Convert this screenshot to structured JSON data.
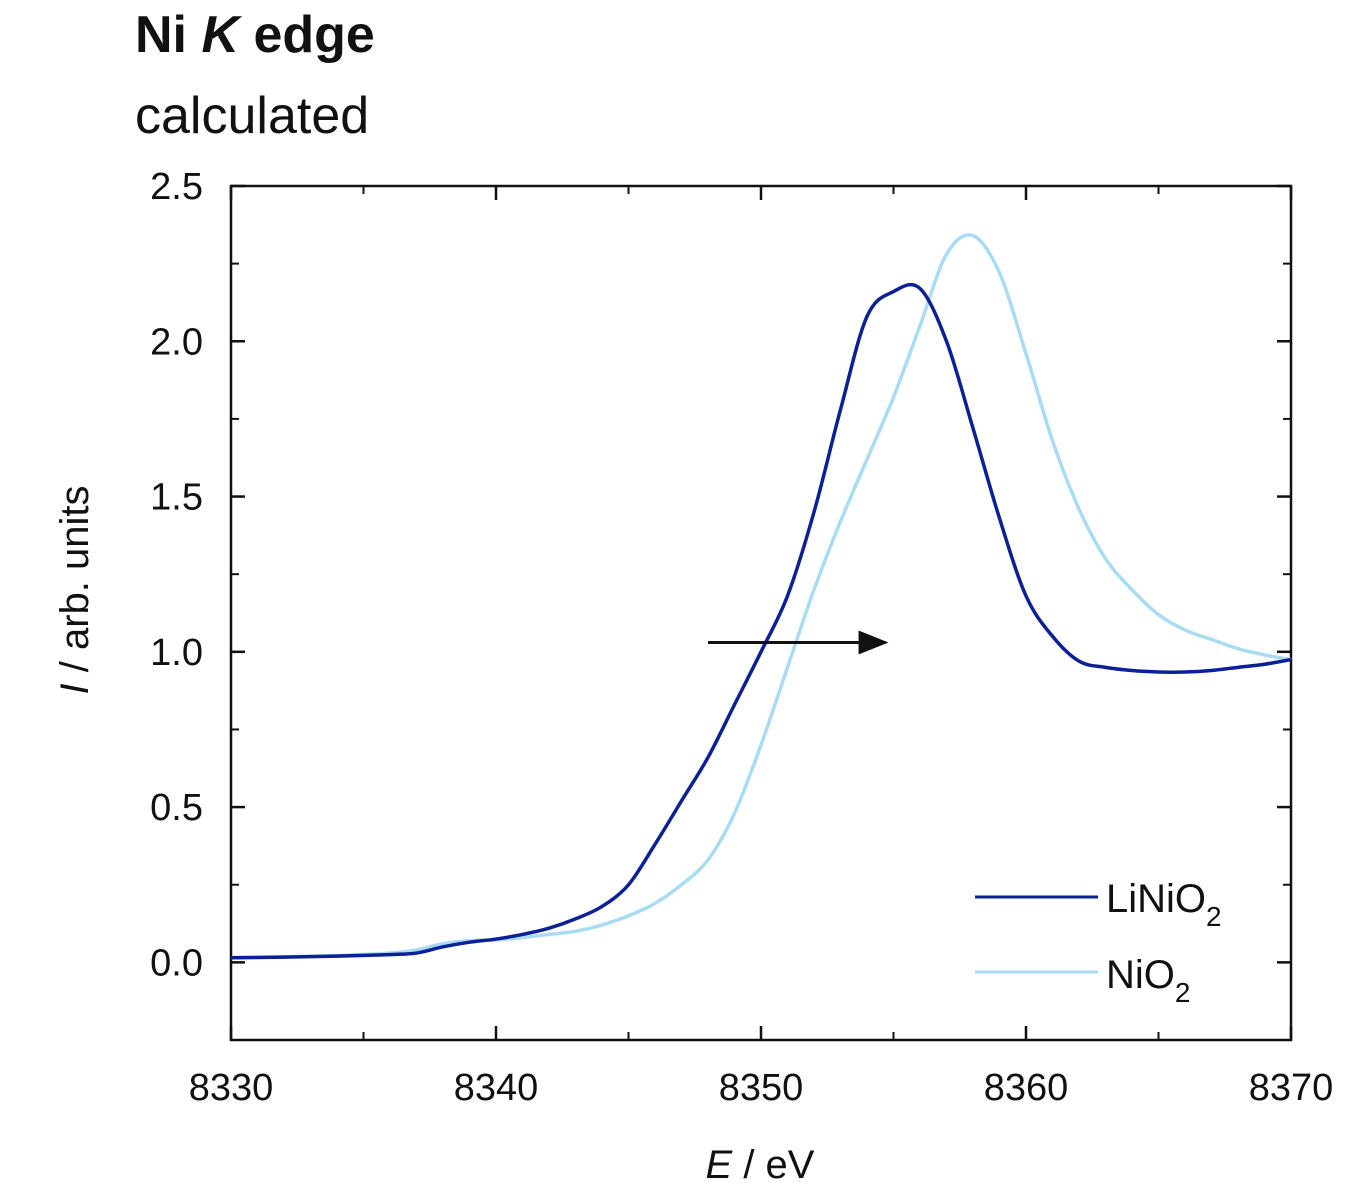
{
  "chart_data": {
    "type": "line",
    "title": {
      "prefix": "Ni ",
      "italic": "K",
      "suffix": " edge"
    },
    "subtitle": "calculated",
    "xlabel": {
      "italic": "E",
      "rest": " / eV"
    },
    "ylabel": {
      "italic": "I",
      "rest": " / arb. units"
    },
    "xlim": [
      8330,
      8370
    ],
    "ylim": [
      -0.25,
      2.5
    ],
    "xticks": [
      8330,
      8340,
      8350,
      8360,
      8370
    ],
    "yticks": [
      "0.0",
      "0.5",
      "1.0",
      "1.5",
      "2.0",
      "2.5"
    ],
    "grid": false,
    "legend_position": "bottom-right",
    "series": [
      {
        "name": {
          "base": "LiNiO",
          "sub": "2"
        },
        "color": "#0b1f96",
        "x": [
          8330,
          8332,
          8334,
          8336,
          8337,
          8338,
          8339,
          8340,
          8341,
          8342,
          8343,
          8344,
          8345,
          8346,
          8347,
          8348,
          8349,
          8350,
          8351,
          8352,
          8353,
          8354,
          8355,
          8356,
          8357,
          8358,
          8359,
          8360,
          8361,
          8362,
          8363,
          8364,
          8365,
          8366,
          8367,
          8368,
          8369,
          8370
        ],
        "y": [
          0.015,
          0.017,
          0.02,
          0.025,
          0.03,
          0.05,
          0.065,
          0.075,
          0.09,
          0.11,
          0.14,
          0.18,
          0.25,
          0.38,
          0.52,
          0.66,
          0.83,
          1.0,
          1.18,
          1.45,
          1.78,
          2.08,
          2.16,
          2.17,
          2.0,
          1.72,
          1.43,
          1.18,
          1.05,
          0.97,
          0.95,
          0.94,
          0.935,
          0.935,
          0.94,
          0.95,
          0.96,
          0.975
        ]
      },
      {
        "name": {
          "base": "NiO",
          "sub": "2"
        },
        "color": "#a9dcf3",
        "x": [
          8330,
          8332,
          8334,
          8336,
          8337,
          8338,
          8339,
          8340,
          8341,
          8342,
          8343,
          8344,
          8345,
          8346,
          8347,
          8348,
          8349,
          8350,
          8351,
          8352,
          8353,
          8354,
          8355,
          8356,
          8357,
          8358,
          8359,
          8360,
          8361,
          8362,
          8363,
          8364,
          8365,
          8366,
          8367,
          8368,
          8369,
          8370
        ],
        "y": [
          0.015,
          0.018,
          0.022,
          0.03,
          0.04,
          0.06,
          0.07,
          0.072,
          0.08,
          0.09,
          0.1,
          0.12,
          0.15,
          0.19,
          0.25,
          0.33,
          0.48,
          0.7,
          0.95,
          1.2,
          1.42,
          1.62,
          1.82,
          2.05,
          2.28,
          2.34,
          2.22,
          1.96,
          1.68,
          1.46,
          1.3,
          1.2,
          1.12,
          1.07,
          1.04,
          1.01,
          0.99,
          0.975
        ]
      }
    ],
    "annotations": [
      {
        "type": "arrow",
        "from": [
          8348,
          1.03
        ],
        "to": [
          8354.7,
          1.03
        ]
      }
    ]
  }
}
